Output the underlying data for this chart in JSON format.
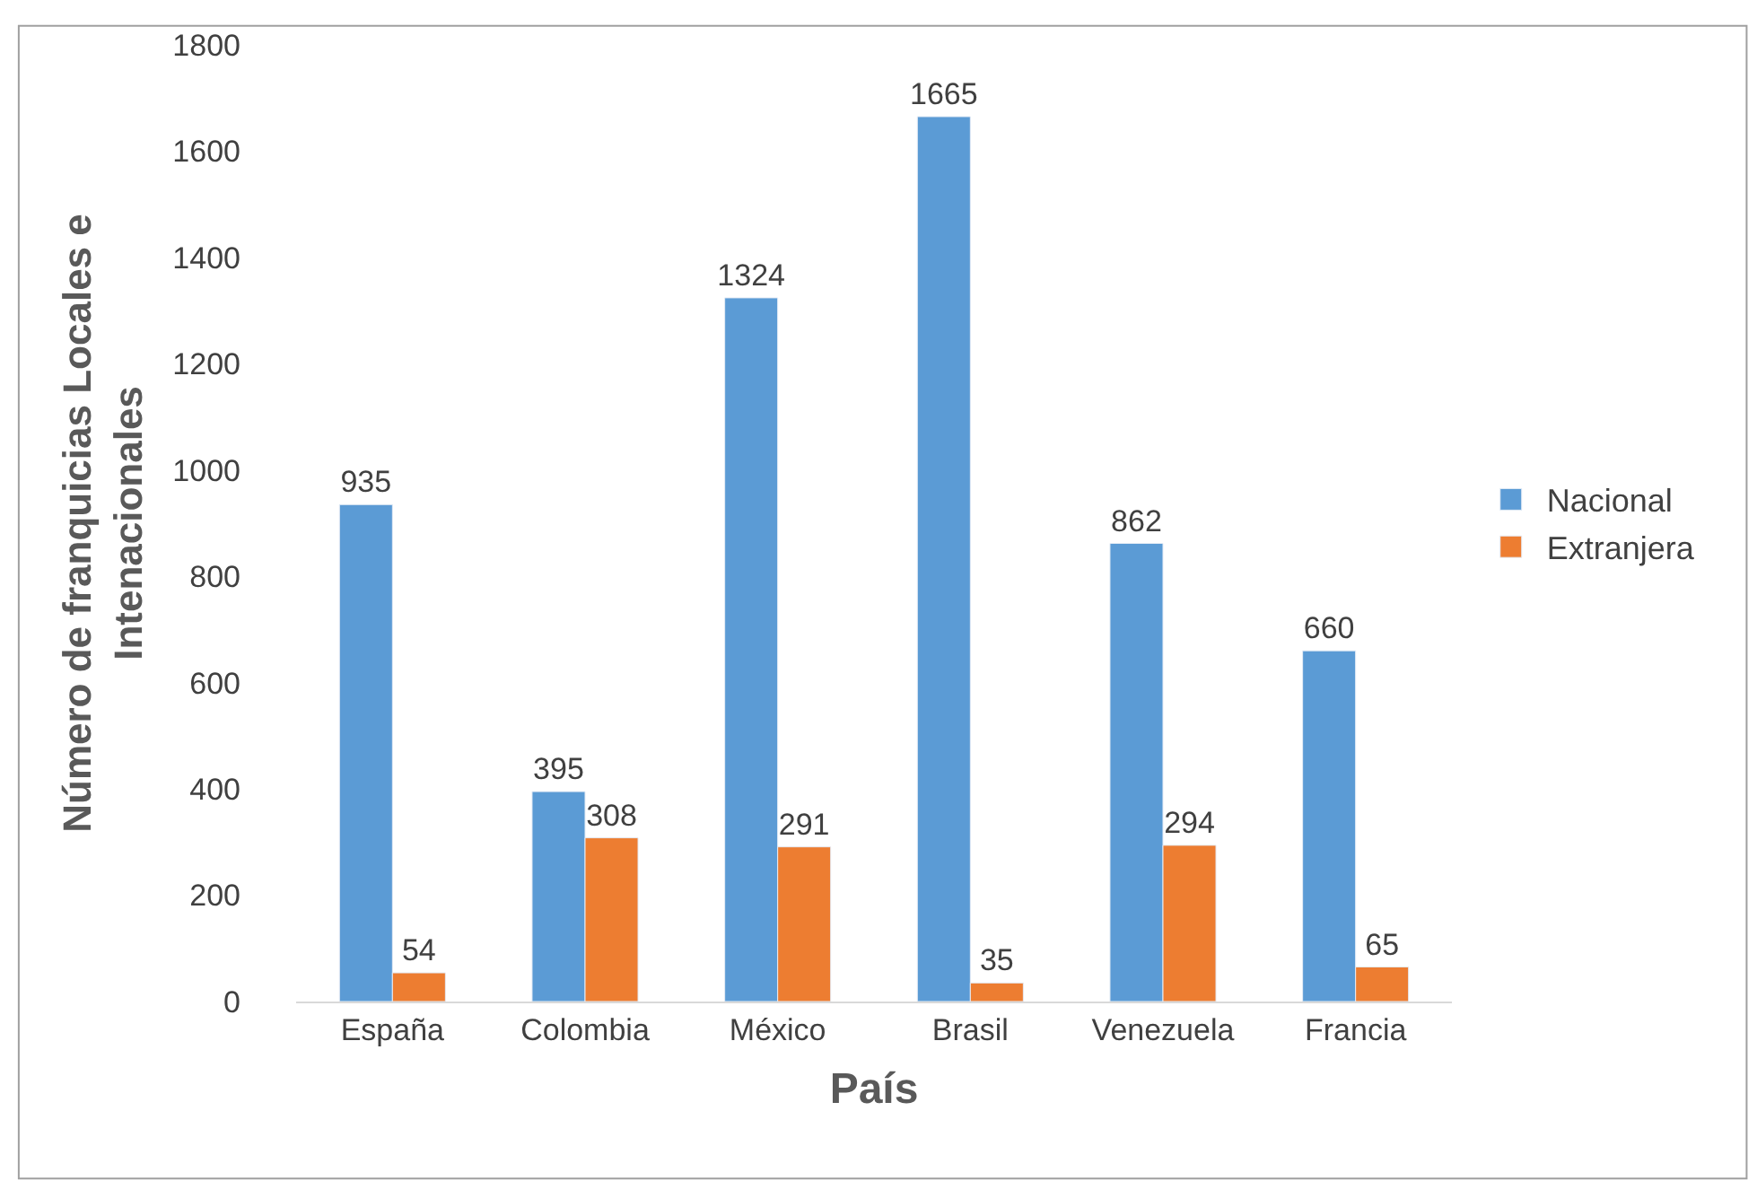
{
  "chart_data": {
    "type": "bar",
    "xlabel": "País",
    "ylabel": "Número de franquicias Locales e Intenacionales",
    "categories": [
      "España",
      "Colombia",
      "México",
      "Brasil",
      "Venezuela",
      "Francia"
    ],
    "series": [
      {
        "name": "Nacional",
        "color": "#5b9bd5",
        "values": [
          935,
          395,
          1324,
          1665,
          862,
          660
        ]
      },
      {
        "name": "Extranjera",
        "color": "#ed7d31",
        "values": [
          54,
          308,
          291,
          35,
          294,
          65
        ]
      }
    ],
    "ylim": [
      0,
      1800
    ],
    "yticks": [
      0,
      200,
      400,
      600,
      800,
      1000,
      1200,
      1400,
      1600,
      1800
    ],
    "data_labels": true,
    "legend": "right"
  }
}
